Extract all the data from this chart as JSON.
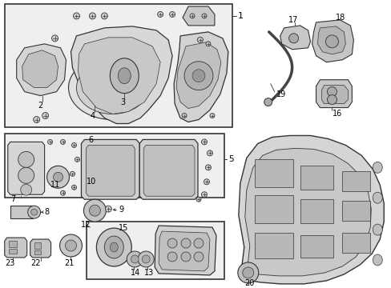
{
  "fig_width": 4.89,
  "fig_height": 3.6,
  "dpi": 100,
  "bg": "#ffffff",
  "box_fc": "#efefef",
  "box_ec": "#333333",
  "part_fc": "#d8d8d8",
  "part_ec": "#333333",
  "text_color": "#000000",
  "line_color": "#333333",
  "font_size": 7.0
}
